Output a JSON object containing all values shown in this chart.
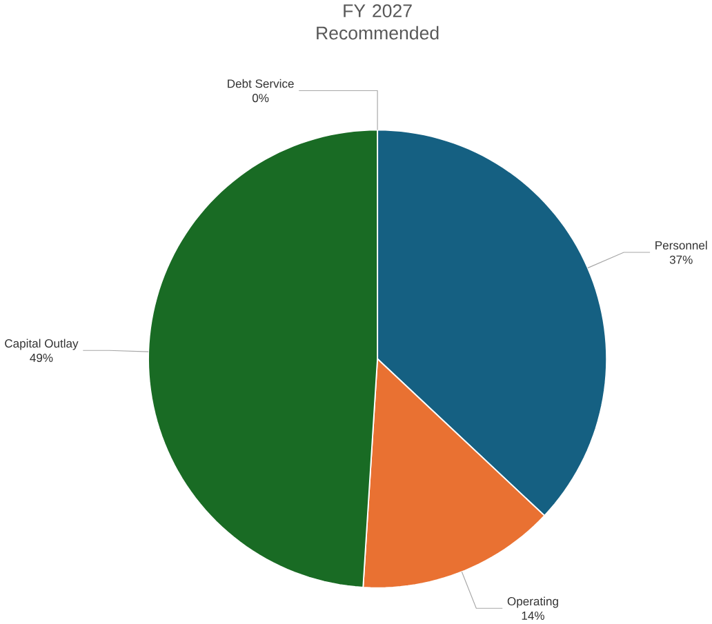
{
  "chart_data": {
    "type": "pie",
    "title": "FY 2027 Recommended",
    "categories": [
      "Personnel",
      "Operating",
      "Capital Outlay",
      "Debt Service"
    ],
    "values": [
      37,
      14,
      49,
      0
    ],
    "value_labels": [
      "37%",
      "14%",
      "49%",
      "0%"
    ],
    "colors": [
      "#156082",
      "#e97132",
      "#196b24",
      "#0f9ed5"
    ]
  }
}
